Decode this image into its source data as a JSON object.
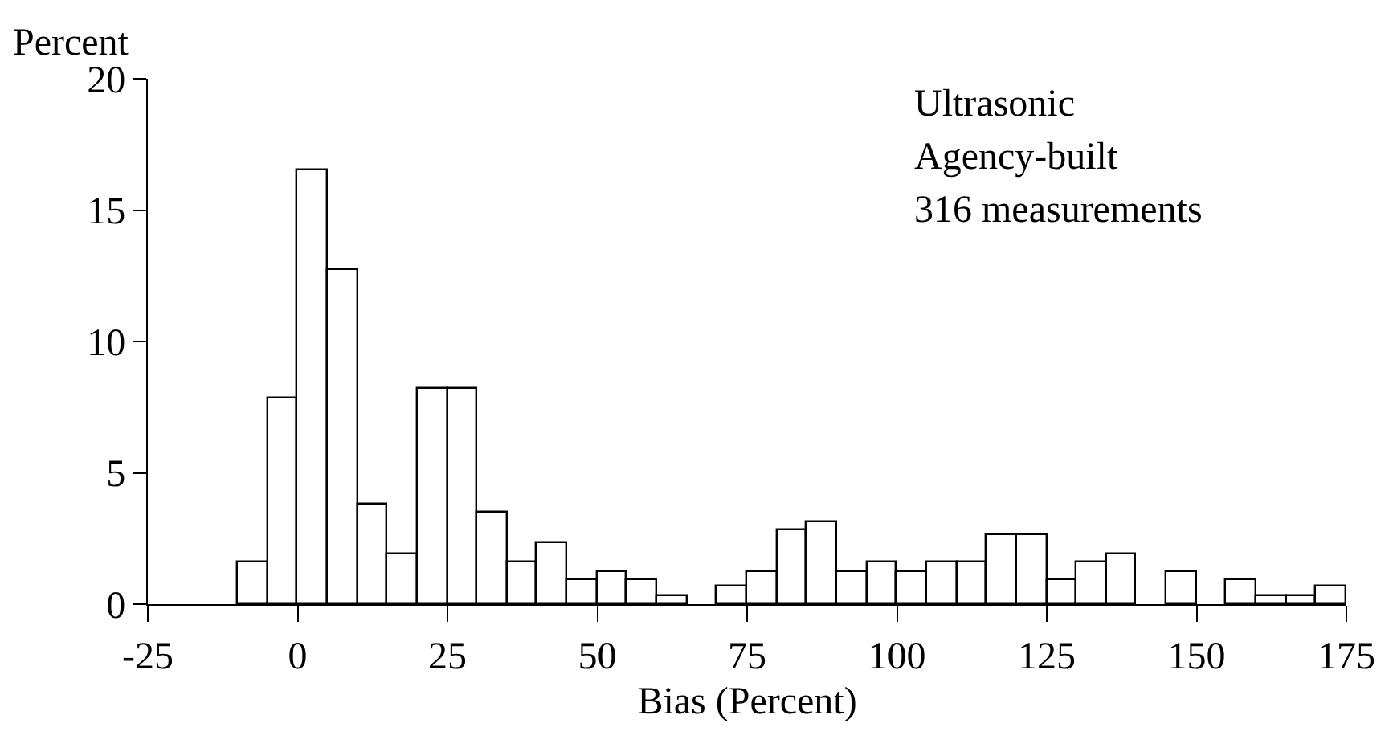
{
  "chart_data": {
    "type": "histogram",
    "xlabel": "Bias (Percent)",
    "ylabel": "Percent",
    "annotations": [
      "Ultrasonic",
      "Agency-built",
      "316 measurements"
    ],
    "bins": [
      -10,
      -5,
      0,
      5,
      10,
      15,
      20,
      25,
      30,
      35,
      40,
      45,
      50,
      55,
      60,
      65,
      70,
      75,
      80,
      85,
      90,
      95,
      100,
      105,
      110,
      115,
      120,
      125,
      130,
      135,
      140,
      145,
      150,
      155,
      160,
      165,
      170,
      175
    ],
    "values": [
      1.6,
      7.8,
      16.5,
      12.7,
      3.8,
      1.9,
      8.2,
      8.2,
      3.5,
      1.6,
      2.3,
      0.9,
      1.2,
      0.9,
      0.3,
      null,
      0.7,
      1.2,
      2.8,
      3.1,
      1.2,
      1.6,
      1.2,
      1.6,
      1.6,
      2.6,
      2.6,
      0.9,
      1.6,
      1.9,
      null,
      1.2,
      null,
      0.9,
      0.3,
      0.3,
      0.7
    ],
    "color": "#ffffff",
    "xlim": [
      -25,
      175
    ],
    "xticks": [
      -25,
      0,
      25,
      50,
      75,
      100,
      125,
      150,
      175
    ],
    "ylim": [
      0,
      20
    ],
    "yticks": [
      0,
      5,
      10,
      15,
      20
    ],
    "grid": false,
    "legend": false
  }
}
